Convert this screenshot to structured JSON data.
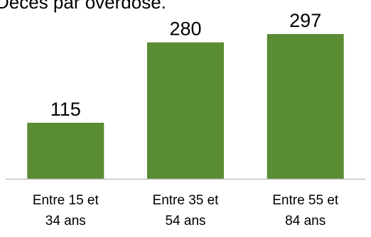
{
  "page": {
    "partial_top_text": "Décès par overdose."
  },
  "chart_data": {
    "type": "bar",
    "categories": [
      [
        "Entre 15 et",
        "34 ans"
      ],
      [
        "Entre 35 et",
        "54 ans"
      ],
      [
        "Entre 55 et",
        "84 ans"
      ]
    ],
    "values": [
      115,
      280,
      297
    ],
    "data_labels": [
      "115",
      "280",
      "297"
    ],
    "ylim": [
      0,
      320
    ],
    "grid": false,
    "colors": {
      "bar": "#5a8c33",
      "axis": "#bfbfbf"
    }
  }
}
